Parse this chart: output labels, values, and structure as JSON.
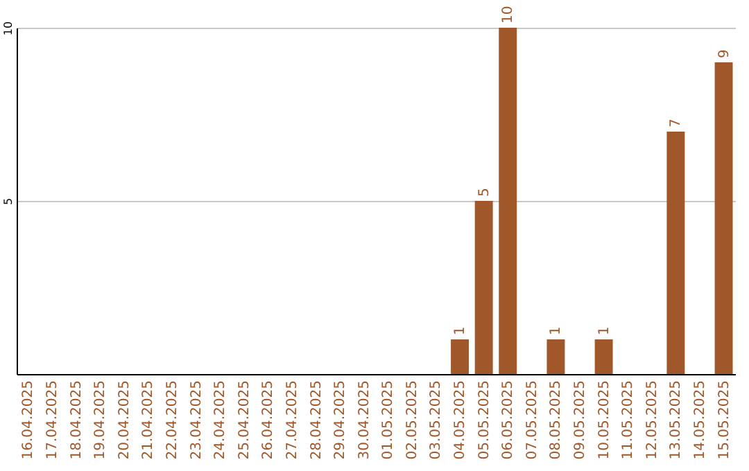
{
  "chart_data": {
    "type": "bar",
    "categories": [
      "16.04.2025",
      "17.04.2025",
      "18.04.2025",
      "19.04.2025",
      "20.04.2025",
      "21.04.2025",
      "22.04.2025",
      "23.04.2025",
      "24.04.2025",
      "25.04.2025",
      "26.04.2025",
      "27.04.2025",
      "28.04.2025",
      "29.04.2025",
      "30.04.2025",
      "01.05.2025",
      "02.05.2025",
      "03.05.2025",
      "04.05.2025",
      "05.05.2025",
      "06.05.2025",
      "07.05.2025",
      "08.05.2025",
      "09.05.2025",
      "10.05.2025",
      "11.05.2025",
      "12.05.2025",
      "13.05.2025",
      "14.05.2025",
      "15.05.2025"
    ],
    "values": [
      0,
      0,
      0,
      0,
      0,
      0,
      0,
      0,
      0,
      0,
      0,
      0,
      0,
      0,
      0,
      0,
      0,
      0,
      1,
      5,
      10,
      0,
      1,
      0,
      1,
      0,
      0,
      7,
      0,
      9
    ],
    "value_labels": [
      null,
      null,
      null,
      null,
      null,
      null,
      null,
      null,
      null,
      null,
      null,
      null,
      null,
      null,
      null,
      null,
      null,
      null,
      "1",
      "5",
      "10",
      null,
      "1",
      null,
      "1",
      null,
      null,
      "7",
      null,
      "9"
    ],
    "color": "#a0582b",
    "ylim": [
      0,
      10
    ],
    "yticks": [
      5,
      10
    ],
    "grid": "y"
  }
}
